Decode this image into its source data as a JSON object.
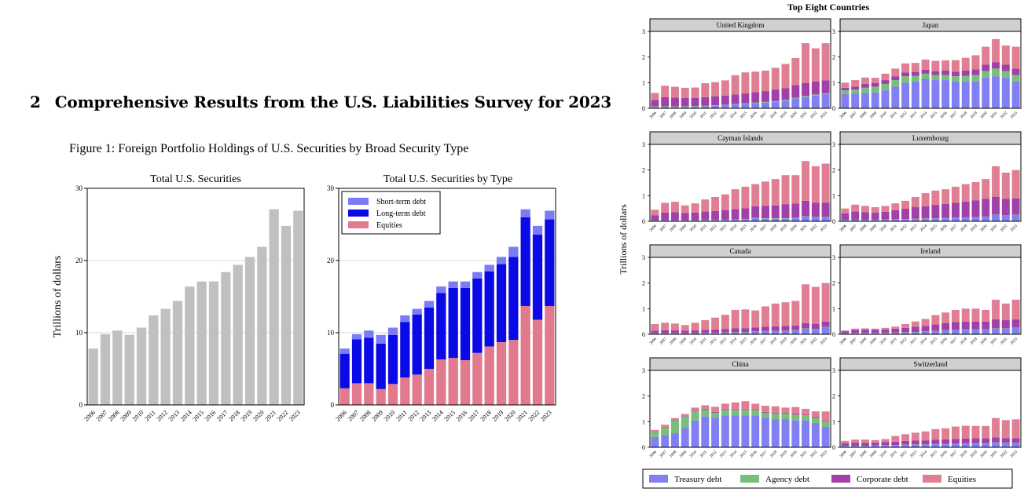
{
  "document": {
    "section_number": "2",
    "section_title": "Comprehensive Results from the U.S. Liabilities Survey for 2023",
    "figure_caption": "Figure 1: Foreign Portfolio Holdings of U.S. Securities by Broad Security Type"
  },
  "colors": {
    "gray_bar": "#c0c0c0",
    "short_term": "#7b7bf5",
    "long_term": "#0a0ae6",
    "equities_left": "#e27a8e",
    "treasury": "#8080f2",
    "agency": "#78c07a",
    "corporate": "#a040a8",
    "equities_right": "#e07f93",
    "panel_header": "#d0d0d0"
  },
  "chart_data": [
    {
      "type": "bar",
      "title": "Total U.S. Securities",
      "ylabel": "Trillions of dollars",
      "ylim": [
        0,
        30
      ],
      "yticks": [
        "0",
        "10",
        "20",
        "30"
      ],
      "grid": true,
      "categories": [
        "2006",
        "2007",
        "2008",
        "2009",
        "2010",
        "2011",
        "2012",
        "2013",
        "2014",
        "2015",
        "2016",
        "2017",
        "2018",
        "2019",
        "2020",
        "2021",
        "2022",
        "2023"
      ],
      "values": [
        7.8,
        9.8,
        10.3,
        9.7,
        10.7,
        12.4,
        13.3,
        14.4,
        16.4,
        17.1,
        17.1,
        18.4,
        19.4,
        20.5,
        21.9,
        27.1,
        24.8,
        26.9
      ]
    },
    {
      "type": "bar",
      "title": "Total U.S. Securities by Type",
      "ylim": [
        0,
        30
      ],
      "yticks": [
        "0",
        "10",
        "20",
        "30"
      ],
      "grid": true,
      "stacked": true,
      "legend_position": "top-left",
      "categories": [
        "2006",
        "2007",
        "2008",
        "2009",
        "2010",
        "2011",
        "2012",
        "2013",
        "2014",
        "2015",
        "2016",
        "2017",
        "2018",
        "2019",
        "2020",
        "2021",
        "2022",
        "2023"
      ],
      "series": [
        {
          "name": "Short-term debt",
          "color_key": "short_term",
          "values": [
            0.7,
            0.7,
            1.0,
            1.2,
            1.0,
            0.9,
            0.8,
            0.9,
            0.9,
            0.9,
            0.9,
            0.9,
            0.9,
            1.0,
            1.4,
            1.1,
            1.2,
            1.2
          ]
        },
        {
          "name": "Long-term debt",
          "color_key": "long_term",
          "values": [
            4.8,
            6.1,
            6.3,
            6.3,
            6.8,
            7.7,
            8.3,
            8.5,
            9.2,
            9.7,
            10.0,
            10.3,
            10.4,
            10.8,
            11.5,
            12.3,
            11.8,
            12.0
          ]
        },
        {
          "name": "Equities",
          "color_key": "equities_left",
          "values": [
            2.3,
            3.0,
            3.0,
            2.2,
            2.9,
            3.8,
            4.2,
            5.0,
            6.3,
            6.5,
            6.2,
            7.2,
            8.1,
            8.7,
            9.0,
            13.7,
            11.8,
            13.7
          ]
        }
      ]
    },
    {
      "type": "bar",
      "stacked": true,
      "title": "Top Eight Countries",
      "ylabel": "Trillions of dollars",
      "ylim": [
        0,
        3
      ],
      "yticks": [
        "0",
        "1",
        "2",
        "3"
      ],
      "categories": [
        "2006",
        "2007",
        "2008",
        "2009",
        "2010",
        "2011",
        "2012",
        "2013",
        "2014",
        "2015",
        "2016",
        "2017",
        "2018",
        "2019",
        "2020",
        "2021",
        "2022",
        "2023"
      ],
      "legend": [
        {
          "name": "Treasury debt",
          "color_key": "treasury"
        },
        {
          "name": "Agency debt",
          "color_key": "agency"
        },
        {
          "name": "Corporate debt",
          "color_key": "corporate"
        },
        {
          "name": "Equities",
          "color_key": "equities_right"
        }
      ],
      "panels": [
        {
          "name": "United Kingdom",
          "treasury": [
            0.05,
            0.06,
            0.05,
            0.06,
            0.07,
            0.08,
            0.1,
            0.12,
            0.15,
            0.18,
            0.2,
            0.22,
            0.25,
            0.3,
            0.38,
            0.45,
            0.5,
            0.55
          ],
          "agency": [
            0.02,
            0.02,
            0.02,
            0.02,
            0.02,
            0.02,
            0.02,
            0.02,
            0.02,
            0.02,
            0.03,
            0.03,
            0.03,
            0.03,
            0.03,
            0.04,
            0.04,
            0.04
          ],
          "corporate": [
            0.25,
            0.35,
            0.35,
            0.32,
            0.32,
            0.33,
            0.35,
            0.35,
            0.37,
            0.38,
            0.4,
            0.42,
            0.45,
            0.45,
            0.5,
            0.5,
            0.5,
            0.5
          ],
          "equities": [
            0.28,
            0.45,
            0.42,
            0.4,
            0.4,
            0.55,
            0.55,
            0.6,
            0.75,
            0.82,
            0.8,
            0.8,
            0.85,
            0.95,
            1.05,
            1.55,
            1.3,
            1.45
          ]
        },
        {
          "name": "Japan",
          "treasury": [
            0.55,
            0.58,
            0.6,
            0.62,
            0.7,
            0.85,
            1.0,
            1.05,
            1.15,
            1.1,
            1.1,
            1.05,
            1.05,
            1.05,
            1.2,
            1.25,
            1.2,
            1.05
          ],
          "agency": [
            0.15,
            0.15,
            0.2,
            0.22,
            0.25,
            0.25,
            0.25,
            0.22,
            0.2,
            0.2,
            0.2,
            0.2,
            0.22,
            0.25,
            0.25,
            0.3,
            0.25,
            0.25
          ],
          "corporate": [
            0.1,
            0.12,
            0.15,
            0.15,
            0.15,
            0.15,
            0.15,
            0.15,
            0.15,
            0.15,
            0.17,
            0.18,
            0.2,
            0.22,
            0.25,
            0.25,
            0.25,
            0.25
          ],
          "equities": [
            0.2,
            0.25,
            0.25,
            0.2,
            0.25,
            0.3,
            0.35,
            0.35,
            0.4,
            0.4,
            0.4,
            0.45,
            0.5,
            0.55,
            0.7,
            0.9,
            0.75,
            0.85
          ]
        },
        {
          "name": "Cayman Islands",
          "treasury": [
            0.02,
            0.03,
            0.03,
            0.03,
            0.03,
            0.04,
            0.04,
            0.05,
            0.06,
            0.08,
            0.12,
            0.1,
            0.1,
            0.1,
            0.12,
            0.18,
            0.15,
            0.15
          ],
          "agency": [
            0.01,
            0.01,
            0.01,
            0.01,
            0.01,
            0.01,
            0.01,
            0.01,
            0.01,
            0.01,
            0.02,
            0.02,
            0.02,
            0.02,
            0.02,
            0.02,
            0.02,
            0.02
          ],
          "corporate": [
            0.2,
            0.3,
            0.32,
            0.28,
            0.3,
            0.33,
            0.35,
            0.38,
            0.4,
            0.42,
            0.45,
            0.48,
            0.5,
            0.55,
            0.55,
            0.6,
            0.55,
            0.55
          ],
          "equities": [
            0.22,
            0.38,
            0.4,
            0.3,
            0.36,
            0.47,
            0.55,
            0.61,
            0.78,
            0.84,
            0.86,
            0.95,
            1.03,
            1.13,
            1.11,
            1.55,
            1.43,
            1.53
          ]
        },
        {
          "name": "Luxembourg",
          "treasury": [
            0.05,
            0.05,
            0.05,
            0.05,
            0.06,
            0.07,
            0.08,
            0.09,
            0.1,
            0.11,
            0.12,
            0.13,
            0.14,
            0.15,
            0.17,
            0.25,
            0.22,
            0.25
          ],
          "agency": [
            0.01,
            0.01,
            0.01,
            0.01,
            0.01,
            0.01,
            0.01,
            0.01,
            0.01,
            0.01,
            0.01,
            0.01,
            0.01,
            0.01,
            0.01,
            0.01,
            0.01,
            0.01
          ],
          "corporate": [
            0.25,
            0.32,
            0.3,
            0.28,
            0.3,
            0.35,
            0.4,
            0.45,
            0.48,
            0.52,
            0.55,
            0.58,
            0.62,
            0.66,
            0.7,
            0.7,
            0.65,
            0.63
          ],
          "equities": [
            0.19,
            0.27,
            0.24,
            0.21,
            0.23,
            0.27,
            0.31,
            0.4,
            0.51,
            0.56,
            0.57,
            0.63,
            0.68,
            0.71,
            0.77,
            1.19,
            1.02,
            1.11
          ]
        },
        {
          "name": "Canada",
          "treasury": [
            0.03,
            0.03,
            0.03,
            0.03,
            0.03,
            0.04,
            0.05,
            0.06,
            0.07,
            0.08,
            0.1,
            0.12,
            0.12,
            0.13,
            0.15,
            0.22,
            0.2,
            0.28
          ],
          "agency": [
            0.01,
            0.01,
            0.01,
            0.01,
            0.01,
            0.01,
            0.01,
            0.01,
            0.01,
            0.01,
            0.01,
            0.01,
            0.01,
            0.01,
            0.01,
            0.01,
            0.01,
            0.01
          ],
          "corporate": [
            0.1,
            0.12,
            0.12,
            0.1,
            0.11,
            0.12,
            0.13,
            0.14,
            0.15,
            0.15,
            0.16,
            0.17,
            0.18,
            0.18,
            0.18,
            0.2,
            0.2,
            0.2
          ],
          "equities": [
            0.26,
            0.29,
            0.26,
            0.22,
            0.3,
            0.38,
            0.46,
            0.55,
            0.72,
            0.73,
            0.66,
            0.79,
            0.89,
            0.93,
            0.96,
            1.52,
            1.44,
            1.51
          ]
        },
        {
          "name": "Ireland",
          "treasury": [
            0.03,
            0.04,
            0.05,
            0.05,
            0.05,
            0.06,
            0.07,
            0.08,
            0.1,
            0.12,
            0.15,
            0.17,
            0.18,
            0.18,
            0.18,
            0.22,
            0.22,
            0.25
          ],
          "agency": [
            0.01,
            0.01,
            0.01,
            0.01,
            0.01,
            0.01,
            0.01,
            0.01,
            0.01,
            0.01,
            0.01,
            0.01,
            0.01,
            0.01,
            0.01,
            0.01,
            0.01,
            0.01
          ],
          "corporate": [
            0.08,
            0.12,
            0.12,
            0.12,
            0.13,
            0.15,
            0.17,
            0.2,
            0.22,
            0.25,
            0.28,
            0.3,
            0.3,
            0.3,
            0.3,
            0.35,
            0.32,
            0.32
          ],
          "equities": [
            0.03,
            0.05,
            0.05,
            0.04,
            0.06,
            0.08,
            0.15,
            0.21,
            0.27,
            0.37,
            0.41,
            0.47,
            0.51,
            0.51,
            0.46,
            0.77,
            0.65,
            0.77
          ]
        },
        {
          "name": "China",
          "treasury": [
            0.4,
            0.48,
            0.55,
            0.75,
            1.05,
            1.2,
            1.15,
            1.25,
            1.25,
            1.25,
            1.25,
            1.15,
            1.1,
            1.1,
            1.05,
            1.05,
            0.95,
            0.8
          ],
          "agency": [
            0.2,
            0.3,
            0.5,
            0.45,
            0.35,
            0.25,
            0.2,
            0.2,
            0.2,
            0.2,
            0.2,
            0.2,
            0.22,
            0.22,
            0.22,
            0.2,
            0.2,
            0.2
          ],
          "corporate": [
            0.02,
            0.02,
            0.02,
            0.02,
            0.03,
            0.03,
            0.03,
            0.03,
            0.03,
            0.03,
            0.03,
            0.03,
            0.03,
            0.03,
            0.03,
            0.03,
            0.03,
            0.03
          ],
          "equities": [
            0.06,
            0.08,
            0.07,
            0.08,
            0.12,
            0.16,
            0.2,
            0.22,
            0.27,
            0.32,
            0.22,
            0.24,
            0.25,
            0.2,
            0.27,
            0.22,
            0.22,
            0.37
          ]
        },
        {
          "name": "Switzerland",
          "treasury": [
            0.05,
            0.05,
            0.05,
            0.06,
            0.07,
            0.08,
            0.09,
            0.1,
            0.1,
            0.12,
            0.12,
            0.13,
            0.14,
            0.15,
            0.15,
            0.18,
            0.17,
            0.17
          ],
          "agency": [
            0.01,
            0.01,
            0.01,
            0.01,
            0.01,
            0.01,
            0.01,
            0.01,
            0.01,
            0.01,
            0.01,
            0.01,
            0.01,
            0.01,
            0.01,
            0.01,
            0.01,
            0.01
          ],
          "corporate": [
            0.1,
            0.12,
            0.11,
            0.11,
            0.12,
            0.13,
            0.15,
            0.15,
            0.16,
            0.17,
            0.18,
            0.18,
            0.19,
            0.19,
            0.19,
            0.2,
            0.18,
            0.18
          ],
          "equities": [
            0.09,
            0.12,
            0.13,
            0.1,
            0.12,
            0.22,
            0.26,
            0.31,
            0.35,
            0.41,
            0.43,
            0.49,
            0.5,
            0.48,
            0.48,
            0.75,
            0.7,
            0.73
          ]
        }
      ]
    }
  ]
}
